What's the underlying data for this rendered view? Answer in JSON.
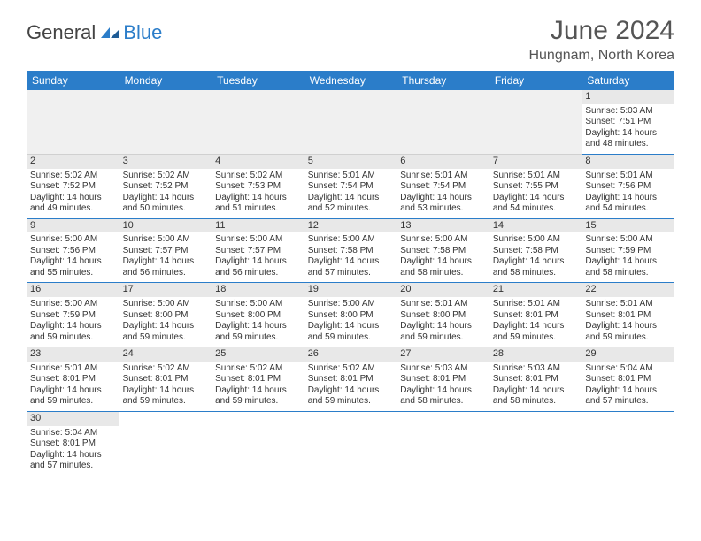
{
  "logo": {
    "text1": "General",
    "text2": "Blue"
  },
  "title": "June 2024",
  "location": "Hungnam, North Korea",
  "header_color": "#2b7dc9",
  "dayheader_bg": "#e8e8e8",
  "empty_bg": "#f0f0f0",
  "columns": [
    "Sunday",
    "Monday",
    "Tuesday",
    "Wednesday",
    "Thursday",
    "Friday",
    "Saturday"
  ],
  "weeks": [
    [
      null,
      null,
      null,
      null,
      null,
      null,
      {
        "n": "1",
        "sr": "5:03 AM",
        "ss": "7:51 PM",
        "dl": "14 hours and 48 minutes."
      }
    ],
    [
      {
        "n": "2",
        "sr": "5:02 AM",
        "ss": "7:52 PM",
        "dl": "14 hours and 49 minutes."
      },
      {
        "n": "3",
        "sr": "5:02 AM",
        "ss": "7:52 PM",
        "dl": "14 hours and 50 minutes."
      },
      {
        "n": "4",
        "sr": "5:02 AM",
        "ss": "7:53 PM",
        "dl": "14 hours and 51 minutes."
      },
      {
        "n": "5",
        "sr": "5:01 AM",
        "ss": "7:54 PM",
        "dl": "14 hours and 52 minutes."
      },
      {
        "n": "6",
        "sr": "5:01 AM",
        "ss": "7:54 PM",
        "dl": "14 hours and 53 minutes."
      },
      {
        "n": "7",
        "sr": "5:01 AM",
        "ss": "7:55 PM",
        "dl": "14 hours and 54 minutes."
      },
      {
        "n": "8",
        "sr": "5:01 AM",
        "ss": "7:56 PM",
        "dl": "14 hours and 54 minutes."
      }
    ],
    [
      {
        "n": "9",
        "sr": "5:00 AM",
        "ss": "7:56 PM",
        "dl": "14 hours and 55 minutes."
      },
      {
        "n": "10",
        "sr": "5:00 AM",
        "ss": "7:57 PM",
        "dl": "14 hours and 56 minutes."
      },
      {
        "n": "11",
        "sr": "5:00 AM",
        "ss": "7:57 PM",
        "dl": "14 hours and 56 minutes."
      },
      {
        "n": "12",
        "sr": "5:00 AM",
        "ss": "7:58 PM",
        "dl": "14 hours and 57 minutes."
      },
      {
        "n": "13",
        "sr": "5:00 AM",
        "ss": "7:58 PM",
        "dl": "14 hours and 58 minutes."
      },
      {
        "n": "14",
        "sr": "5:00 AM",
        "ss": "7:58 PM",
        "dl": "14 hours and 58 minutes."
      },
      {
        "n": "15",
        "sr": "5:00 AM",
        "ss": "7:59 PM",
        "dl": "14 hours and 58 minutes."
      }
    ],
    [
      {
        "n": "16",
        "sr": "5:00 AM",
        "ss": "7:59 PM",
        "dl": "14 hours and 59 minutes."
      },
      {
        "n": "17",
        "sr": "5:00 AM",
        "ss": "8:00 PM",
        "dl": "14 hours and 59 minutes."
      },
      {
        "n": "18",
        "sr": "5:00 AM",
        "ss": "8:00 PM",
        "dl": "14 hours and 59 minutes."
      },
      {
        "n": "19",
        "sr": "5:00 AM",
        "ss": "8:00 PM",
        "dl": "14 hours and 59 minutes."
      },
      {
        "n": "20",
        "sr": "5:01 AM",
        "ss": "8:00 PM",
        "dl": "14 hours and 59 minutes."
      },
      {
        "n": "21",
        "sr": "5:01 AM",
        "ss": "8:01 PM",
        "dl": "14 hours and 59 minutes."
      },
      {
        "n": "22",
        "sr": "5:01 AM",
        "ss": "8:01 PM",
        "dl": "14 hours and 59 minutes."
      }
    ],
    [
      {
        "n": "23",
        "sr": "5:01 AM",
        "ss": "8:01 PM",
        "dl": "14 hours and 59 minutes."
      },
      {
        "n": "24",
        "sr": "5:02 AM",
        "ss": "8:01 PM",
        "dl": "14 hours and 59 minutes."
      },
      {
        "n": "25",
        "sr": "5:02 AM",
        "ss": "8:01 PM",
        "dl": "14 hours and 59 minutes."
      },
      {
        "n": "26",
        "sr": "5:02 AM",
        "ss": "8:01 PM",
        "dl": "14 hours and 59 minutes."
      },
      {
        "n": "27",
        "sr": "5:03 AM",
        "ss": "8:01 PM",
        "dl": "14 hours and 58 minutes."
      },
      {
        "n": "28",
        "sr": "5:03 AM",
        "ss": "8:01 PM",
        "dl": "14 hours and 58 minutes."
      },
      {
        "n": "29",
        "sr": "5:04 AM",
        "ss": "8:01 PM",
        "dl": "14 hours and 57 minutes."
      }
    ],
    [
      {
        "n": "30",
        "sr": "5:04 AM",
        "ss": "8:01 PM",
        "dl": "14 hours and 57 minutes."
      },
      null,
      null,
      null,
      null,
      null,
      null
    ]
  ],
  "labels": {
    "sunrise": "Sunrise:",
    "sunset": "Sunset:",
    "daylight": "Daylight:"
  }
}
